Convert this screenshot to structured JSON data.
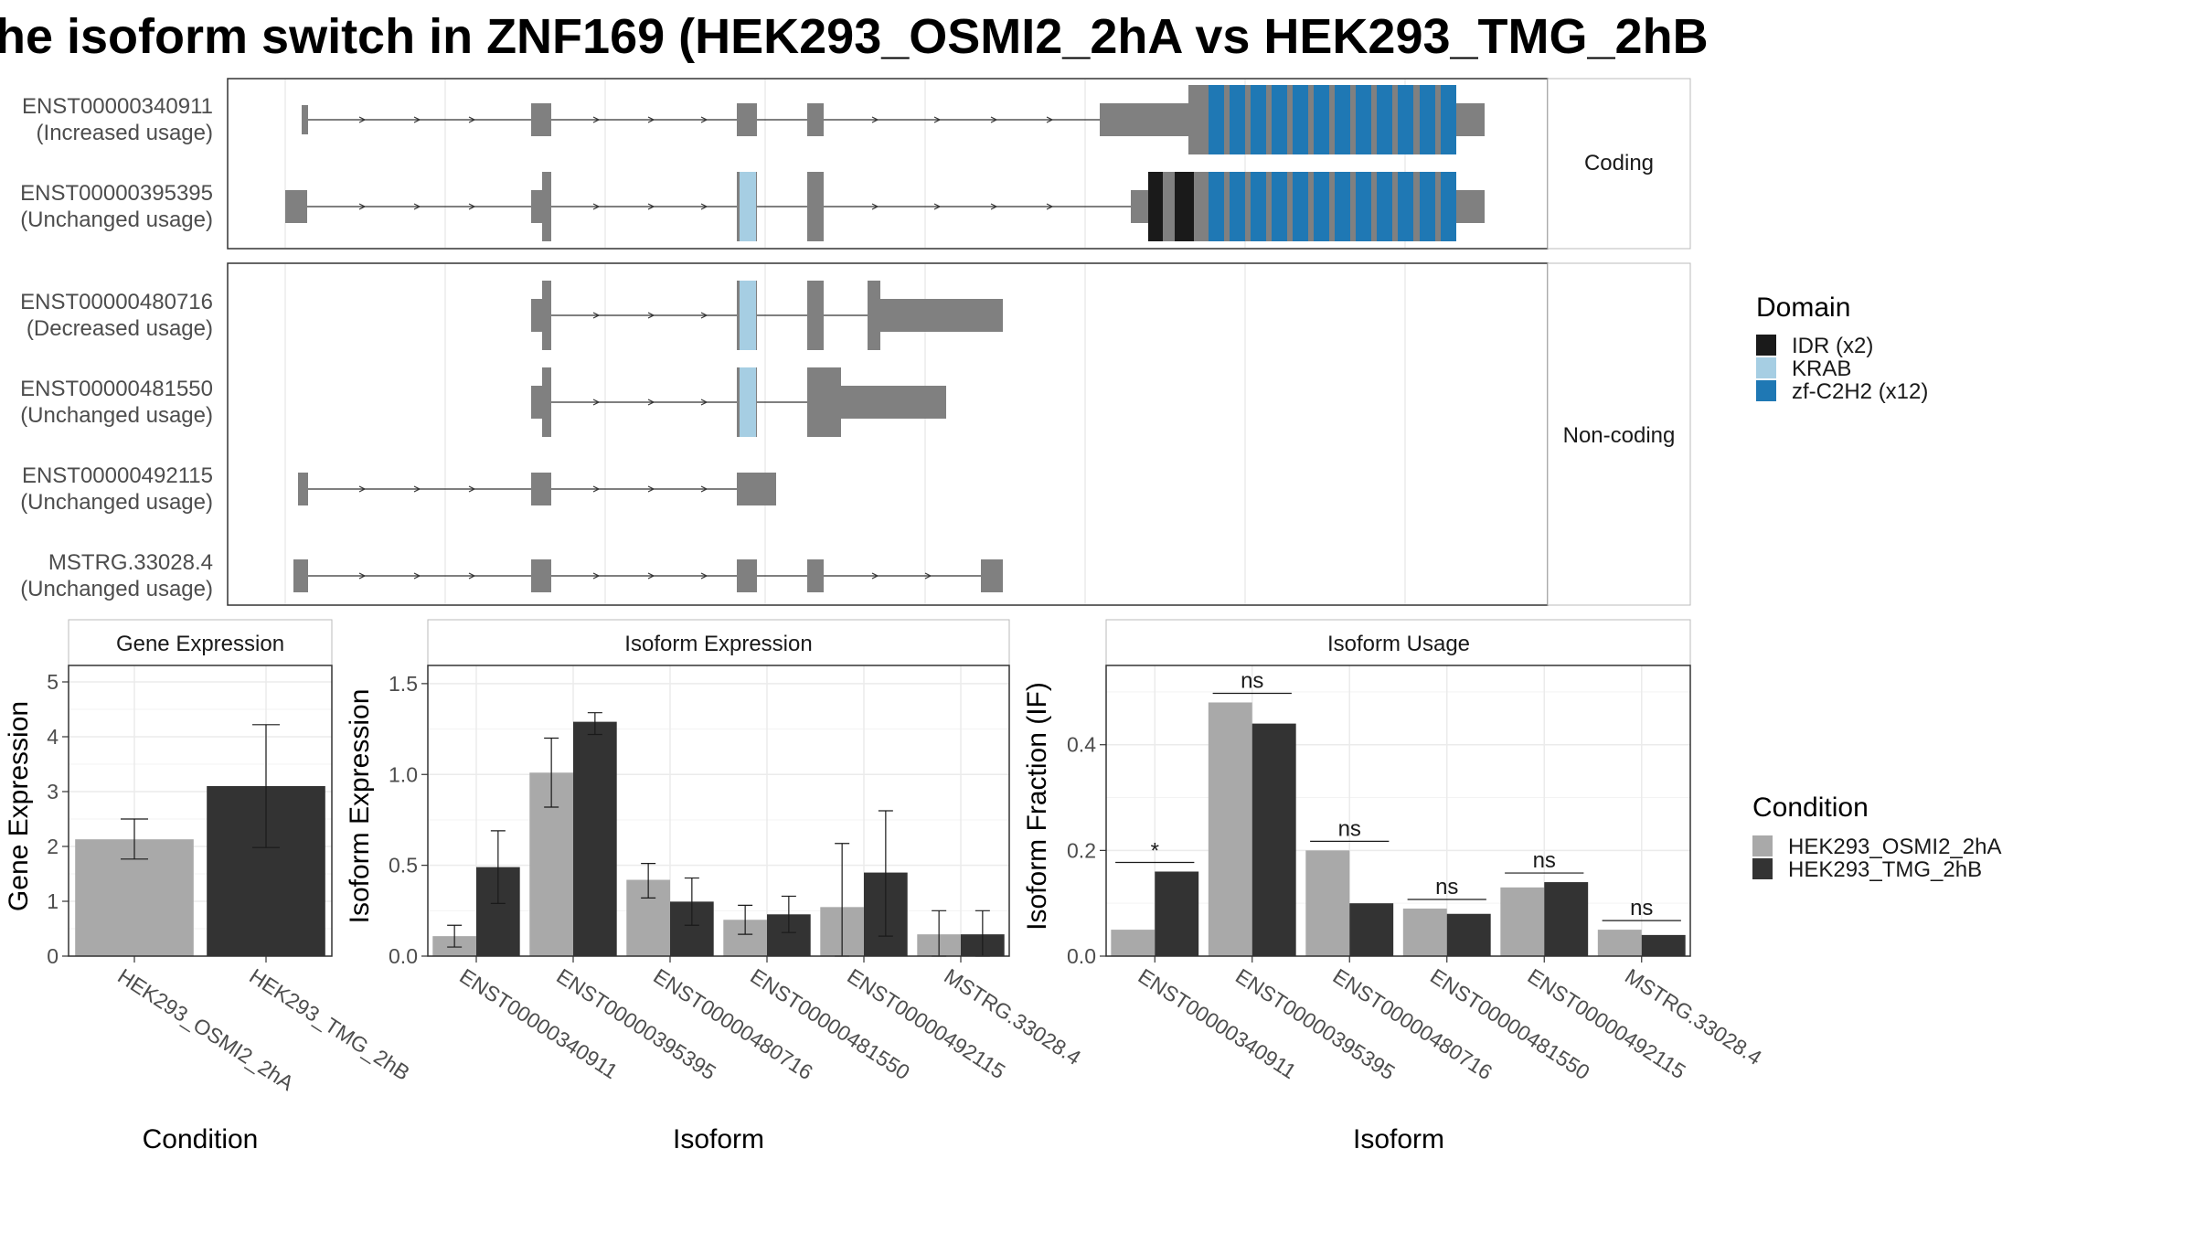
{
  "title": "he isoform switch in ZNF169 (HEK293_OSMI2_2hA vs HEK293_TMG_2hB",
  "structure": {
    "groups": [
      {
        "label": "Coding",
        "transcripts": [
          {
            "id": "ENST00000340911",
            "usage": "(Increased usage)"
          },
          {
            "id": "ENST00000395395",
            "usage": "(Unchanged usage)"
          }
        ]
      },
      {
        "label": "Non-coding",
        "transcripts": [
          {
            "id": "ENST00000480716",
            "usage": "(Decreased usage)"
          },
          {
            "id": "ENST00000481550",
            "usage": "(Unchanged usage)"
          },
          {
            "id": "ENST00000492115",
            "usage": "(Unchanged usage)"
          },
          {
            "id": "MSTRG.33028.4",
            "usage": "(Unchanged usage)"
          }
        ]
      }
    ]
  },
  "legends": {
    "domain": {
      "title": "Domain",
      "items": [
        {
          "label": "IDR (x2)",
          "color": "#1a1a1a"
        },
        {
          "label": "KRAB",
          "color": "#a6cee3"
        },
        {
          "label": "zf-C2H2 (x12)",
          "color": "#1f78b4"
        }
      ]
    },
    "condition": {
      "title": "Condition",
      "items": [
        {
          "label": "HEK293_OSMI2_2hA",
          "color": "#a9a9a9"
        },
        {
          "label": "HEK293_TMG_2hB",
          "color": "#333333"
        }
      ]
    }
  },
  "chart_data": [
    {
      "type": "bar",
      "title": "Gene Expression",
      "xlabel": "Condition",
      "ylabel": "Gene Expression",
      "ylim": [
        0,
        5.3
      ],
      "yticks": [
        0,
        1,
        2,
        3,
        4,
        5
      ],
      "categories": [
        "HEK293_OSMI2_2hA",
        "HEK293_TMG_2hB"
      ],
      "values": [
        2.13,
        3.1
      ],
      "errors": [
        [
          1.77,
          2.5
        ],
        [
          1.98,
          4.22
        ]
      ]
    },
    {
      "type": "bar",
      "title": "Isoform Expression",
      "xlabel": "Isoform",
      "ylabel": "Isoform Expression",
      "ylim": [
        0,
        1.6
      ],
      "yticks": [
        0.0,
        0.5,
        1.0,
        1.5
      ],
      "categories": [
        "ENST00000340911",
        "ENST00000395395",
        "ENST00000480716",
        "ENST00000481550",
        "ENST00000492115",
        "MSTRG.33028.4"
      ],
      "series": [
        {
          "name": "HEK293_OSMI2_2hA",
          "values": [
            0.11,
            1.01,
            0.42,
            0.2,
            0.27,
            0.12
          ],
          "errors": [
            [
              0.05,
              0.17
            ],
            [
              0.82,
              1.2
            ],
            [
              0.32,
              0.51
            ],
            [
              0.12,
              0.28
            ],
            [
              0.0,
              0.62
            ],
            [
              0.0,
              0.25
            ]
          ]
        },
        {
          "name": "HEK293_TMG_2hB",
          "values": [
            0.49,
            1.29,
            0.3,
            0.23,
            0.46,
            0.12
          ],
          "errors": [
            [
              0.29,
              0.69
            ],
            [
              1.22,
              1.34
            ],
            [
              0.17,
              0.43
            ],
            [
              0.13,
              0.33
            ],
            [
              0.11,
              0.8
            ],
            [
              0.0,
              0.25
            ]
          ]
        }
      ]
    },
    {
      "type": "bar",
      "title": "Isoform Usage",
      "xlabel": "Isoform",
      "ylabel": "Isoform Fraction (IF)",
      "ylim": [
        0,
        0.55
      ],
      "yticks": [
        0.0,
        0.2,
        0.4
      ],
      "categories": [
        "ENST00000340911",
        "ENST00000395395",
        "ENST00000480716",
        "ENST00000481550",
        "ENST00000492115",
        "MSTRG.33028.4"
      ],
      "series": [
        {
          "name": "HEK293_OSMI2_2hA",
          "values": [
            0.05,
            0.48,
            0.2,
            0.09,
            0.13,
            0.05
          ]
        },
        {
          "name": "HEK293_TMG_2hB",
          "values": [
            0.16,
            0.44,
            0.1,
            0.08,
            0.14,
            0.04
          ]
        }
      ],
      "significance": [
        "*",
        "ns",
        "ns",
        "ns",
        "ns",
        "ns"
      ]
    }
  ]
}
